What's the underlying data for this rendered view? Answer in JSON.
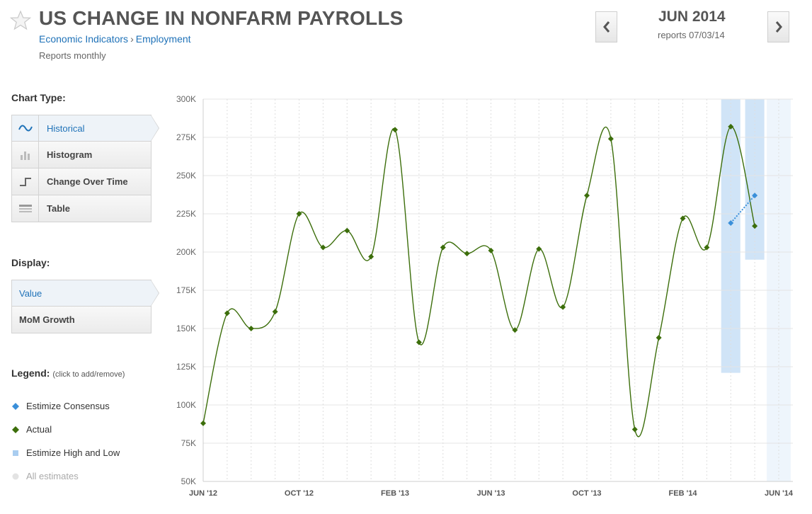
{
  "header": {
    "title": "US CHANGE IN NONFARM PAYROLLS",
    "breadcrumb": [
      "Economic Indicators",
      "Employment"
    ],
    "breadcrumb_sep": "›",
    "subtitle": "Reports monthly",
    "period": "JUN 2014",
    "period_sub": "reports 07/03/14",
    "prev_icon": "chevron-left-icon",
    "next_icon": "chevron-right-icon"
  },
  "sidebar": {
    "chart_type_label": "Chart Type:",
    "chart_types": [
      {
        "label": "Historical",
        "icon": "wave-icon",
        "active": true
      },
      {
        "label": "Histogram",
        "icon": "bars-icon",
        "active": false
      },
      {
        "label": "Change Over Time",
        "icon": "step-icon",
        "active": false
      },
      {
        "label": "Table",
        "icon": "table-icon",
        "active": false
      }
    ],
    "display_label": "Display:",
    "display_options": [
      {
        "label": "Value",
        "active": true
      },
      {
        "label": "MoM Growth",
        "active": false
      }
    ],
    "legend_label": "Legend:",
    "legend_hint": "(click to add/remove)",
    "legend_items": [
      {
        "label": "Estimize Consensus",
        "color": "#3a8fd9",
        "marker": "diamond"
      },
      {
        "label": "Actual",
        "color": "#3c6e0b",
        "marker": "diamond"
      },
      {
        "label": "Estimize High and Low",
        "color": "#a9cdf0",
        "marker": "square"
      },
      {
        "label": "All estimates",
        "color": "#e3e3e3",
        "marker": "circle",
        "muted": true
      }
    ]
  },
  "chart_data": {
    "type": "line",
    "title": "",
    "xlabel": "",
    "ylabel": "",
    "ylim": [
      50000,
      300000
    ],
    "yticks": [
      50000,
      75000,
      100000,
      125000,
      150000,
      175000,
      200000,
      225000,
      250000,
      275000,
      300000
    ],
    "ytick_labels": [
      "50K",
      "75K",
      "100K",
      "125K",
      "150K",
      "175K",
      "200K",
      "225K",
      "250K",
      "275K",
      "300K"
    ],
    "x_months": [
      "Jun 2012",
      "Jul 2012",
      "Aug 2012",
      "Sep 2012",
      "Oct 2012",
      "Nov 2012",
      "Dec 2012",
      "Jan 2013",
      "Feb 2013",
      "Mar 2013",
      "Apr 2013",
      "May 2013",
      "Jun 2013",
      "Jul 2013",
      "Aug 2013",
      "Sep 2013",
      "Oct 2013",
      "Nov 2013",
      "Dec 2013",
      "Jan 2014",
      "Feb 2014",
      "Mar 2014",
      "Apr 2014",
      "May 2014",
      "Jun 2014"
    ],
    "xtick_labels": [
      "JUN '12",
      "OCT '12",
      "FEB '13",
      "JUN '13",
      "OCT '13",
      "FEB '14",
      "JUN '14"
    ],
    "xtick_months": [
      "Jun 2012",
      "Oct 2012",
      "Feb 2013",
      "Jun 2013",
      "Oct 2013",
      "Feb 2014",
      "Jun 2014"
    ],
    "grid": true,
    "series": [
      {
        "name": "Actual",
        "color": "#3c6e0b",
        "x": [
          "Jun 2012",
          "Jul 2012",
          "Aug 2012",
          "Sep 2012",
          "Oct 2012",
          "Nov 2012",
          "Dec 2012",
          "Jan 2013",
          "Feb 2013",
          "Mar 2013",
          "Apr 2013",
          "May 2013",
          "Jun 2013",
          "Jul 2013",
          "Aug 2013",
          "Sep 2013",
          "Oct 2013",
          "Nov 2013",
          "Dec 2013",
          "Jan 2014",
          "Feb 2014",
          "Mar 2014",
          "Apr 2014",
          "May 2014"
        ],
        "values": [
          88000,
          160000,
          150000,
          161000,
          225000,
          203000,
          214000,
          197000,
          280000,
          141000,
          203000,
          199000,
          201000,
          149000,
          202000,
          164000,
          237000,
          274000,
          84000,
          144000,
          222000,
          203000,
          282000,
          217000
        ]
      },
      {
        "name": "Estimize Consensus",
        "color": "#3a8fd9",
        "x": [
          "Apr 2014",
          "May 2014"
        ],
        "values": [
          219000,
          237000
        ]
      }
    ],
    "ranges": [
      {
        "name": "Estimize High and Low",
        "color": "#a9cdf0",
        "x": "Apr 2014",
        "low": 121000,
        "high": 300000
      },
      {
        "name": "Estimize High and Low",
        "color": "#a9cdf0",
        "x": "May 2014",
        "low": 195000,
        "high": 300000
      }
    ],
    "future_band": {
      "x": "Jun 2014",
      "color": "#eef5fc"
    }
  }
}
